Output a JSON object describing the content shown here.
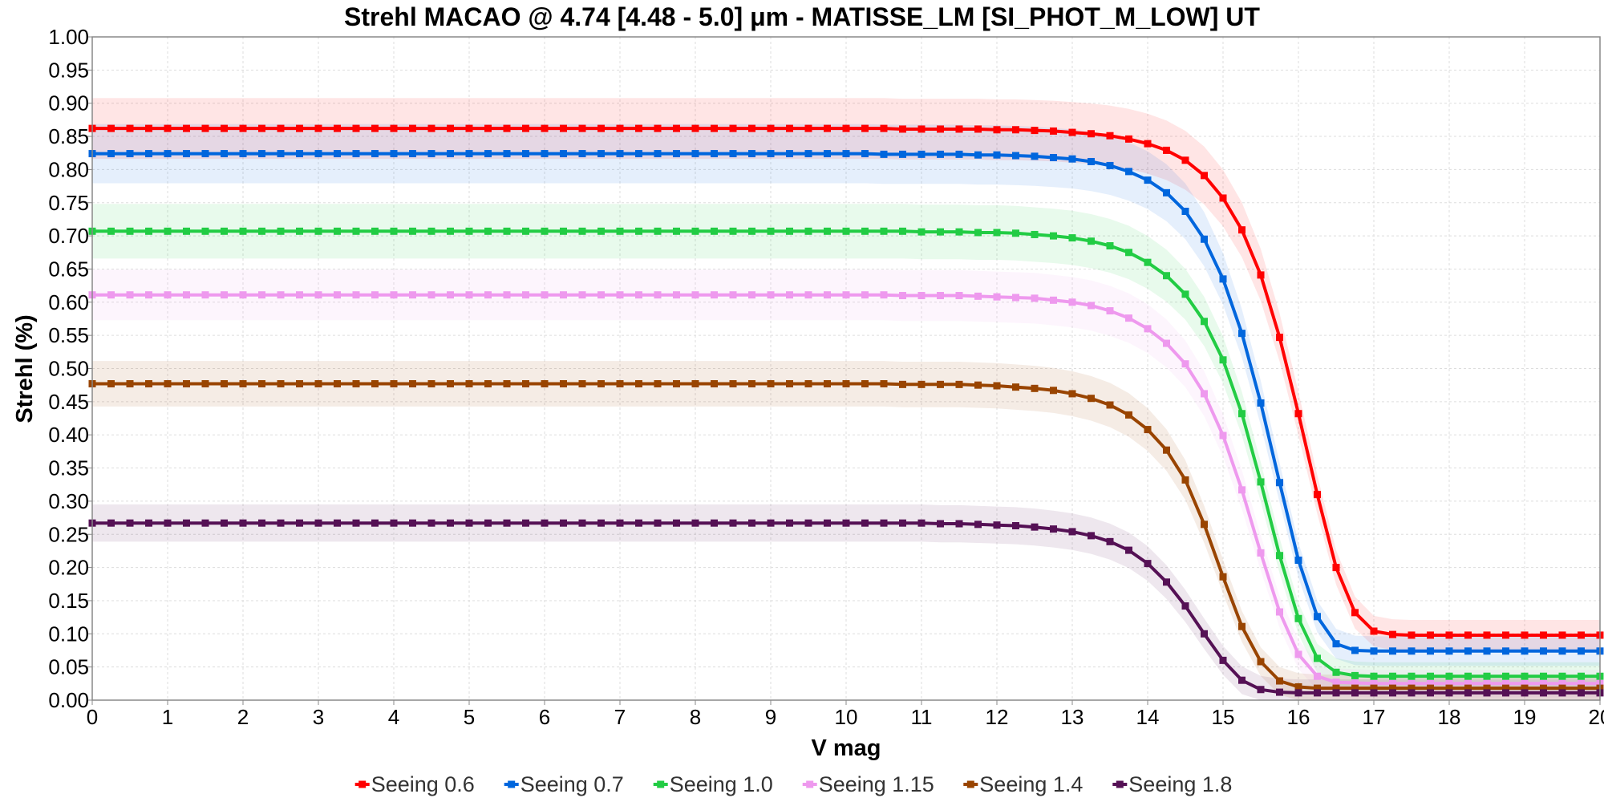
{
  "chart_data": {
    "type": "line",
    "title": "Strehl MACAO @ 4.74 [4.48 - 5.0] μm - MATISSE_LM [SI_PHOT_M_LOW] UT",
    "xlabel": "V mag",
    "ylabel": "Strehl (%)",
    "xlim": [
      0,
      20
    ],
    "ylim": [
      0,
      1.0
    ],
    "x_ticks": [
      "0",
      "1",
      "2",
      "3",
      "4",
      "5",
      "6",
      "7",
      "8",
      "9",
      "10",
      "11",
      "12",
      "13",
      "14",
      "15",
      "16",
      "17",
      "18",
      "19",
      "20"
    ],
    "y_ticks": [
      "0.00",
      "0.05",
      "0.10",
      "0.15",
      "0.20",
      "0.25",
      "0.30",
      "0.35",
      "0.40",
      "0.45",
      "0.50",
      "0.55",
      "0.60",
      "0.65",
      "0.70",
      "0.75",
      "0.80",
      "0.85",
      "0.90",
      "0.95",
      "1.00"
    ],
    "grid": true,
    "legend_position": "bottom",
    "x": [
      0,
      0.25,
      0.5,
      0.75,
      1,
      1.25,
      1.5,
      1.75,
      2,
      2.25,
      2.5,
      2.75,
      3,
      3.25,
      3.5,
      3.75,
      4,
      4.25,
      4.5,
      4.75,
      5,
      5.25,
      5.5,
      5.75,
      6,
      6.25,
      6.5,
      6.75,
      7,
      7.25,
      7.5,
      7.75,
      8,
      8.25,
      8.5,
      8.75,
      9,
      9.25,
      9.5,
      9.75,
      10,
      10.25,
      10.5,
      10.75,
      11,
      11.25,
      11.5,
      11.75,
      12,
      12.25,
      12.5,
      12.75,
      13,
      13.25,
      13.5,
      13.75,
      14,
      14.25,
      14.5,
      14.75,
      15,
      15.25,
      15.5,
      15.75,
      16,
      16.25,
      16.5,
      16.75,
      17,
      17.25,
      17.5,
      17.75,
      18,
      18.25,
      18.5,
      18.75,
      19,
      19.25,
      19.5,
      19.75,
      20
    ],
    "series": [
      {
        "name": "Seeing 0.6",
        "color": "#ff0000",
        "values": [
          0.862,
          0.862,
          0.862,
          0.862,
          0.862,
          0.862,
          0.862,
          0.862,
          0.862,
          0.862,
          0.862,
          0.862,
          0.862,
          0.862,
          0.862,
          0.862,
          0.862,
          0.862,
          0.862,
          0.862,
          0.862,
          0.862,
          0.862,
          0.862,
          0.862,
          0.862,
          0.862,
          0.862,
          0.862,
          0.862,
          0.862,
          0.862,
          0.862,
          0.862,
          0.862,
          0.862,
          0.862,
          0.862,
          0.862,
          0.862,
          0.862,
          0.862,
          0.862,
          0.861,
          0.861,
          0.861,
          0.861,
          0.861,
          0.86,
          0.86,
          0.859,
          0.858,
          0.856,
          0.854,
          0.851,
          0.846,
          0.839,
          0.829,
          0.814,
          0.791,
          0.757,
          0.709,
          0.641,
          0.547,
          0.432,
          0.31,
          0.2,
          0.132,
          0.104,
          0.099,
          0.098,
          0.098,
          0.098,
          0.098,
          0.098,
          0.098,
          0.098,
          0.098,
          0.098,
          0.098,
          0.098
        ]
      },
      {
        "name": "Seeing 0.7",
        "color": "#0066dd",
        "values": [
          0.824,
          0.824,
          0.824,
          0.824,
          0.824,
          0.824,
          0.824,
          0.824,
          0.824,
          0.824,
          0.824,
          0.824,
          0.824,
          0.824,
          0.824,
          0.824,
          0.824,
          0.824,
          0.824,
          0.824,
          0.824,
          0.824,
          0.824,
          0.824,
          0.824,
          0.824,
          0.824,
          0.824,
          0.824,
          0.824,
          0.824,
          0.824,
          0.824,
          0.824,
          0.824,
          0.824,
          0.824,
          0.824,
          0.824,
          0.824,
          0.824,
          0.824,
          0.823,
          0.823,
          0.823,
          0.823,
          0.823,
          0.822,
          0.822,
          0.821,
          0.82,
          0.818,
          0.816,
          0.812,
          0.806,
          0.797,
          0.784,
          0.765,
          0.737,
          0.695,
          0.635,
          0.553,
          0.448,
          0.328,
          0.211,
          0.126,
          0.085,
          0.075,
          0.074,
          0.074,
          0.074,
          0.074,
          0.074,
          0.074,
          0.074,
          0.074,
          0.074,
          0.074,
          0.074,
          0.074,
          0.074
        ]
      },
      {
        "name": "Seeing 1.0",
        "color": "#22cc44",
        "values": [
          0.707,
          0.707,
          0.707,
          0.707,
          0.707,
          0.707,
          0.707,
          0.707,
          0.707,
          0.707,
          0.707,
          0.707,
          0.707,
          0.707,
          0.707,
          0.707,
          0.707,
          0.707,
          0.707,
          0.707,
          0.707,
          0.707,
          0.707,
          0.707,
          0.707,
          0.707,
          0.707,
          0.707,
          0.707,
          0.707,
          0.707,
          0.707,
          0.707,
          0.707,
          0.707,
          0.707,
          0.707,
          0.707,
          0.707,
          0.707,
          0.707,
          0.707,
          0.707,
          0.707,
          0.706,
          0.706,
          0.706,
          0.705,
          0.705,
          0.704,
          0.702,
          0.7,
          0.697,
          0.692,
          0.685,
          0.675,
          0.66,
          0.64,
          0.612,
          0.571,
          0.513,
          0.432,
          0.329,
          0.218,
          0.123,
          0.063,
          0.042,
          0.037,
          0.036,
          0.036,
          0.036,
          0.036,
          0.036,
          0.036,
          0.036,
          0.036,
          0.036,
          0.036,
          0.036,
          0.036,
          0.036
        ]
      },
      {
        "name": "Seeing 1.15",
        "color": "#ee99ee",
        "values": [
          0.611,
          0.611,
          0.611,
          0.611,
          0.611,
          0.611,
          0.611,
          0.611,
          0.611,
          0.611,
          0.611,
          0.611,
          0.611,
          0.611,
          0.611,
          0.611,
          0.611,
          0.611,
          0.611,
          0.611,
          0.611,
          0.611,
          0.611,
          0.611,
          0.611,
          0.611,
          0.611,
          0.611,
          0.611,
          0.611,
          0.611,
          0.611,
          0.611,
          0.611,
          0.611,
          0.611,
          0.611,
          0.611,
          0.611,
          0.611,
          0.611,
          0.611,
          0.611,
          0.61,
          0.61,
          0.61,
          0.61,
          0.609,
          0.608,
          0.607,
          0.606,
          0.603,
          0.6,
          0.595,
          0.587,
          0.576,
          0.56,
          0.538,
          0.507,
          0.462,
          0.399,
          0.317,
          0.222,
          0.133,
          0.069,
          0.036,
          0.027,
          0.026,
          0.025,
          0.025,
          0.025,
          0.025,
          0.025,
          0.025,
          0.025,
          0.025,
          0.025,
          0.025,
          0.025,
          0.025,
          0.025
        ]
      },
      {
        "name": "Seeing 1.4",
        "color": "#994400",
        "values": [
          0.477,
          0.477,
          0.477,
          0.477,
          0.477,
          0.477,
          0.477,
          0.477,
          0.477,
          0.477,
          0.477,
          0.477,
          0.477,
          0.477,
          0.477,
          0.477,
          0.477,
          0.477,
          0.477,
          0.477,
          0.477,
          0.477,
          0.477,
          0.477,
          0.477,
          0.477,
          0.477,
          0.477,
          0.477,
          0.477,
          0.477,
          0.477,
          0.477,
          0.477,
          0.477,
          0.477,
          0.477,
          0.477,
          0.477,
          0.477,
          0.477,
          0.477,
          0.477,
          0.476,
          0.476,
          0.476,
          0.476,
          0.475,
          0.474,
          0.472,
          0.47,
          0.467,
          0.462,
          0.455,
          0.445,
          0.43,
          0.408,
          0.377,
          0.332,
          0.265,
          0.186,
          0.111,
          0.058,
          0.029,
          0.02,
          0.018,
          0.018,
          0.018,
          0.018,
          0.018,
          0.018,
          0.018,
          0.018,
          0.018,
          0.018,
          0.018,
          0.018,
          0.018,
          0.018,
          0.018,
          0.018
        ]
      },
      {
        "name": "Seeing 1.8",
        "color": "#551155",
        "values": [
          0.267,
          0.267,
          0.267,
          0.267,
          0.267,
          0.267,
          0.267,
          0.267,
          0.267,
          0.267,
          0.267,
          0.267,
          0.267,
          0.267,
          0.267,
          0.267,
          0.267,
          0.267,
          0.267,
          0.267,
          0.267,
          0.267,
          0.267,
          0.267,
          0.267,
          0.267,
          0.267,
          0.267,
          0.267,
          0.267,
          0.267,
          0.267,
          0.267,
          0.267,
          0.267,
          0.267,
          0.267,
          0.267,
          0.267,
          0.267,
          0.267,
          0.267,
          0.267,
          0.267,
          0.267,
          0.266,
          0.266,
          0.265,
          0.264,
          0.263,
          0.261,
          0.258,
          0.254,
          0.248,
          0.239,
          0.226,
          0.206,
          0.178,
          0.142,
          0.1,
          0.06,
          0.03,
          0.016,
          0.012,
          0.011,
          0.011,
          0.011,
          0.011,
          0.011,
          0.011,
          0.011,
          0.011,
          0.011,
          0.011,
          0.011,
          0.011,
          0.011,
          0.011,
          0.011,
          0.011,
          0.011
        ]
      }
    ]
  }
}
